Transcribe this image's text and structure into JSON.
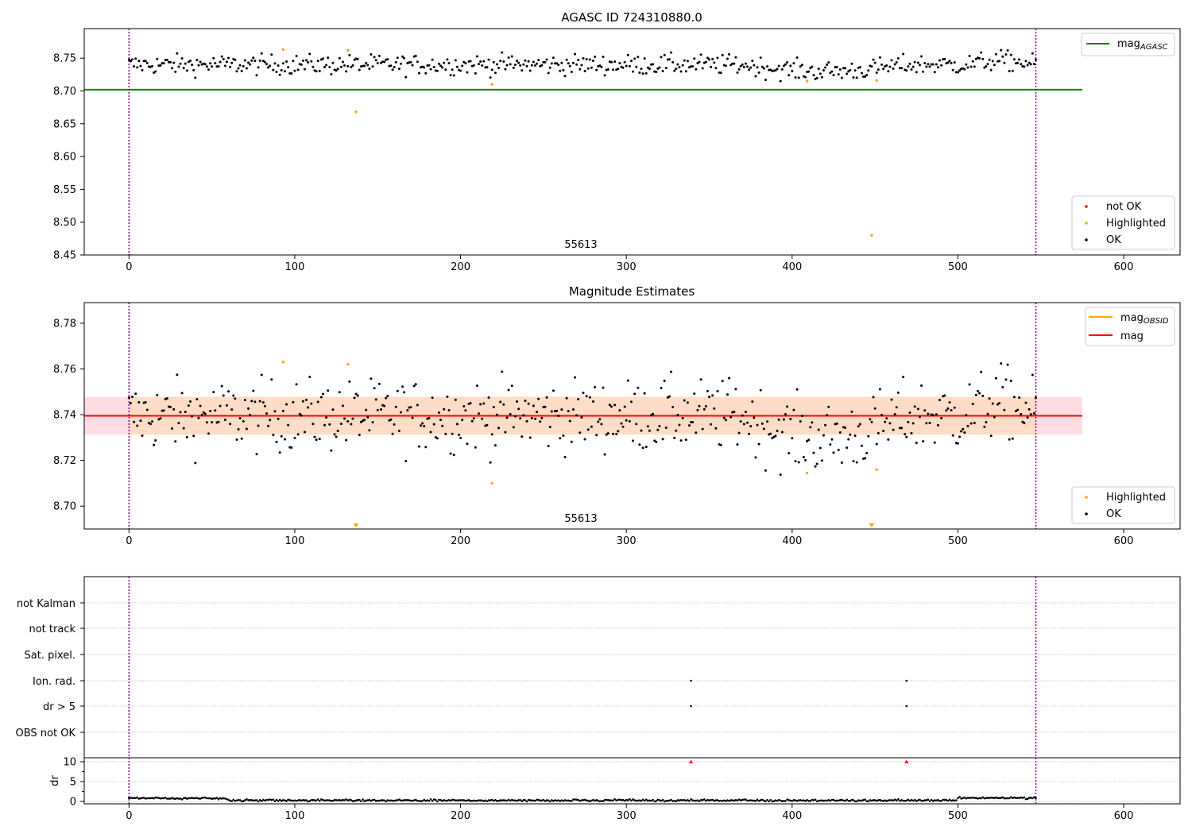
{
  "chart_data": [
    {
      "type": "scatter",
      "title": "AGASC ID 724310880.0",
      "xlim": [
        -27,
        634
      ],
      "ylim": [
        8.45,
        8.795
      ],
      "xticks": [
        0,
        100,
        200,
        300,
        400,
        500,
        600
      ],
      "yticks": [
        8.45,
        8.5,
        8.55,
        8.6,
        8.65,
        8.7,
        8.75
      ],
      "ytick_labels": [
        "8.45",
        "8.50",
        "8.55",
        "8.60",
        "8.65",
        "8.70",
        "8.75"
      ],
      "obsid_label": "55613",
      "vlines": [
        0,
        547
      ],
      "hline": {
        "name": "mag",
        "sub": "AGASC",
        "y": 8.702,
        "x_end": 575,
        "color": "#008000"
      },
      "line_legend_position": "top-right",
      "point_legend_position": "lower-right",
      "point_legend": [
        {
          "label": "not OK",
          "color": "#ff0000"
        },
        {
          "label": "Highlighted",
          "color": "#ffa500"
        },
        {
          "label": "OK",
          "color": "#000000"
        }
      ],
      "ok_series": {
        "n": 548,
        "mean": 8.74,
        "noise": 0.0075,
        "regions": [
          {
            "x0": 370,
            "x1": 470,
            "offset": -0.01
          },
          {
            "x0": 505,
            "x1": 547,
            "offset": 0.006
          }
        ]
      },
      "highlighted_points": [
        [
          93,
          8.763
        ],
        [
          132,
          8.762
        ],
        [
          137,
          8.668
        ],
        [
          219,
          8.71
        ],
        [
          409,
          8.715
        ],
        [
          448,
          8.48
        ],
        [
          451,
          8.716
        ]
      ]
    },
    {
      "type": "scatter",
      "title": "Magnitude Estimates",
      "xlim": [
        -27,
        634
      ],
      "ylim": [
        8.69,
        8.789
      ],
      "xticks": [
        0,
        100,
        200,
        300,
        400,
        500,
        600
      ],
      "yticks": [
        8.7,
        8.72,
        8.74,
        8.76,
        8.78
      ],
      "ytick_labels": [
        "8.70",
        "8.72",
        "8.74",
        "8.76",
        "8.78"
      ],
      "obsid_label": "55613",
      "vlines": [
        0,
        547
      ],
      "mag_band": {
        "y": 8.7395,
        "low": 8.7313,
        "high": 8.7478,
        "x_end": 575
      },
      "obsid_band": {
        "low": 8.7313,
        "high": 8.7478,
        "x0": 0,
        "x1": 547
      },
      "line_legend_position": "top-right",
      "point_legend_position": "lower-right",
      "line_legend": [
        {
          "label": "mag",
          "sub": "OBSID",
          "color": "#ffa500"
        },
        {
          "label": "mag",
          "sub": "",
          "color": "#ff0000"
        }
      ],
      "point_legend": [
        {
          "label": "Highlighted",
          "color": "#ffa500"
        },
        {
          "label": "OK",
          "color": "#000000"
        }
      ],
      "ok_series": {
        "n": 548,
        "mean": 8.7395,
        "noise": 0.0078,
        "regions": [
          {
            "x0": 370,
            "x1": 470,
            "offset": -0.01
          },
          {
            "x0": 505,
            "x1": 547,
            "offset": 0.006
          }
        ]
      },
      "highlighted_points": [
        [
          93,
          8.763
        ],
        [
          132,
          8.762
        ],
        [
          219,
          8.71
        ],
        [
          409,
          8.7145
        ],
        [
          451,
          8.716
        ]
      ],
      "offscale_markers": [
        137,
        448
      ]
    },
    {
      "type": "scatter",
      "xlim": [
        -27,
        634
      ],
      "flag_rows": [
        "not Kalman",
        "not track",
        "Sat. pixel.",
        "Ion. rad.",
        "dr > 5",
        "OBS not OK"
      ],
      "flag_points": [
        {
          "row": "Ion. rad.",
          "x": [
            339,
            469
          ]
        },
        {
          "row": "dr > 5",
          "x": [
            339,
            469
          ]
        }
      ],
      "vlines": [
        0,
        547
      ]
    },
    {
      "type": "scatter",
      "ylabel": "dr",
      "xlim": [
        -27,
        634
      ],
      "ylim": [
        -0.6,
        11
      ],
      "xticks": [
        0,
        100,
        200,
        300,
        400,
        500,
        600
      ],
      "yticks": [
        0,
        5,
        10
      ],
      "ytick_labels": [
        "0",
        "5",
        "10"
      ],
      "vlines": [
        0,
        547
      ],
      "ok_series": {
        "n": 548,
        "levels": [
          {
            "x0": 0,
            "x1": 60,
            "y": 0.8
          },
          {
            "x0": 60,
            "x1": 500,
            "y": 0.25
          },
          {
            "x0": 500,
            "x1": 547,
            "y": 0.9
          }
        ]
      },
      "high_points": [
        [
          339,
          10
        ],
        [
          469,
          10
        ]
      ]
    }
  ]
}
